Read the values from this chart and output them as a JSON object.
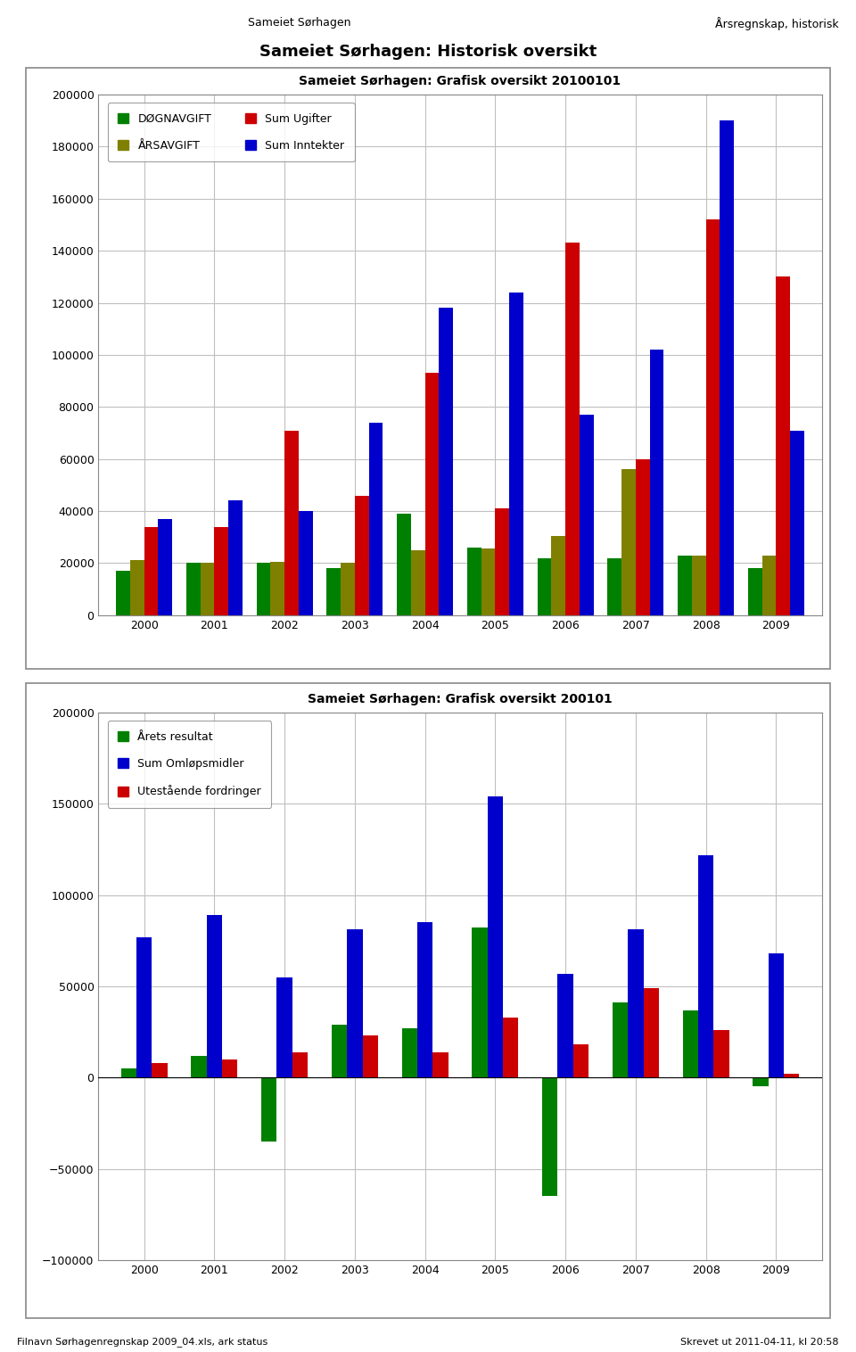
{
  "page_title_left": "Sameiet Sørhagen",
  "page_title_right": "Årsregnskap, historisk",
  "main_title": "Sameiet Sørhagen: Historisk oversikt",
  "footer_left": "Filnavn Sørhagenregnskap 2009_04.xls, ark status",
  "footer_right": "Skrevet ut 2011-04-11, kl 20:58",
  "chart1_title": "Sameiet Sørhagen: Grafisk oversikt 20100101",
  "chart1_years": [
    2000,
    2001,
    2002,
    2003,
    2004,
    2005,
    2006,
    2007,
    2008,
    2009
  ],
  "chart1_dognavgift": [
    17000,
    20000,
    20000,
    18000,
    39000,
    26000,
    22000,
    22000,
    23000,
    18000
  ],
  "chart1_arsavgift": [
    21000,
    20000,
    20500,
    20000,
    25000,
    25500,
    30500,
    56000,
    23000,
    23000
  ],
  "chart1_sum_ugifter": [
    34000,
    34000,
    71000,
    46000,
    93000,
    41000,
    143000,
    60000,
    152000,
    130000
  ],
  "chart1_sum_inntekter": [
    37000,
    44000,
    40000,
    74000,
    118000,
    124000,
    77000,
    102000,
    190000,
    71000
  ],
  "chart1_colors": [
    "#008000",
    "#808000",
    "#cc0000",
    "#0000cc"
  ],
  "chart1_legend": [
    "DØGNAVGIFT",
    "ÅRSAVGIFT",
    "Sum Ugifter",
    "Sum Inntekter"
  ],
  "chart1_ylim": [
    0,
    200000
  ],
  "chart1_yticks": [
    0,
    20000,
    40000,
    60000,
    80000,
    100000,
    120000,
    140000,
    160000,
    180000,
    200000
  ],
  "chart2_title": "Sameiet Sørhagen: Grafisk oversikt 200101",
  "chart2_years": [
    2000,
    2001,
    2002,
    2003,
    2004,
    2005,
    2006,
    2007,
    2008,
    2009
  ],
  "chart2_arets_resultat": [
    5000,
    12000,
    -35000,
    29000,
    27000,
    82000,
    -65000,
    41000,
    37000,
    -5000
  ],
  "chart2_sum_omlopsmidler": [
    77000,
    89000,
    55000,
    81000,
    85000,
    154000,
    57000,
    81000,
    122000,
    68000
  ],
  "chart2_utestaaende_fordringer": [
    8000,
    10000,
    14000,
    23000,
    14000,
    33000,
    18000,
    49000,
    26000,
    2000
  ],
  "chart2_colors": [
    "#008000",
    "#0000cc",
    "#cc0000"
  ],
  "chart2_legend": [
    "Årets resultat",
    "Sum Omløpsmidler",
    "Utestående fordringer"
  ],
  "chart2_ylim": [
    -100000,
    200000
  ],
  "chart2_yticks": [
    -100000,
    -50000,
    0,
    50000,
    100000,
    150000,
    200000
  ],
  "background_color": "#ffffff",
  "chart_bg_color": "#ffffff",
  "grid_color": "#c0c0c0",
  "border_color": "#888888"
}
